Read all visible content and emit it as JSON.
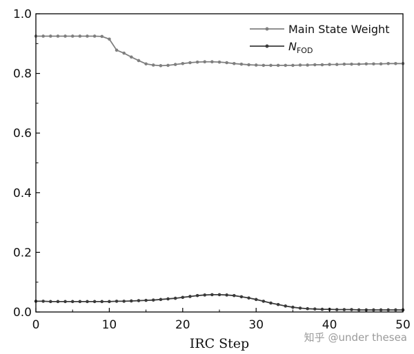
{
  "chart_data": {
    "type": "line",
    "title": "",
    "xlabel": "IRC Step",
    "ylabel": "",
    "xlim": [
      0,
      50
    ],
    "ylim": [
      0,
      1.0
    ],
    "xticks": [
      "0",
      "10",
      "20",
      "30",
      "40",
      "50"
    ],
    "yticks": [
      "0.0",
      "0.2",
      "0.4",
      "0.6",
      "0.8",
      "1.0"
    ],
    "grid": false,
    "legend_position": "top-right",
    "x": [
      0,
      1,
      2,
      3,
      4,
      5,
      6,
      7,
      8,
      9,
      10,
      11,
      12,
      13,
      14,
      15,
      16,
      17,
      18,
      19,
      20,
      21,
      22,
      23,
      24,
      25,
      26,
      27,
      28,
      29,
      30,
      31,
      32,
      33,
      34,
      35,
      36,
      37,
      38,
      39,
      40,
      41,
      42,
      43,
      44,
      45,
      46,
      47,
      48,
      49,
      50
    ],
    "series": [
      {
        "name": "Main State Weight",
        "color": "#7f7f7f",
        "values": [
          0.925,
          0.925,
          0.925,
          0.925,
          0.925,
          0.925,
          0.925,
          0.925,
          0.925,
          0.924,
          0.915,
          0.878,
          0.868,
          0.855,
          0.843,
          0.832,
          0.828,
          0.826,
          0.827,
          0.83,
          0.833,
          0.836,
          0.838,
          0.839,
          0.839,
          0.838,
          0.836,
          0.833,
          0.831,
          0.829,
          0.828,
          0.827,
          0.827,
          0.827,
          0.827,
          0.827,
          0.828,
          0.828,
          0.829,
          0.829,
          0.83,
          0.83,
          0.831,
          0.831,
          0.831,
          0.832,
          0.832,
          0.832,
          0.833,
          0.833,
          0.833
        ]
      },
      {
        "name": "N",
        "name_subscript": "FOD",
        "color": "#3a3a3a",
        "values": [
          0.036,
          0.036,
          0.035,
          0.035,
          0.035,
          0.035,
          0.035,
          0.035,
          0.035,
          0.035,
          0.035,
          0.036,
          0.036,
          0.037,
          0.038,
          0.039,
          0.04,
          0.042,
          0.044,
          0.046,
          0.049,
          0.052,
          0.055,
          0.057,
          0.058,
          0.058,
          0.057,
          0.055,
          0.051,
          0.047,
          0.042,
          0.036,
          0.03,
          0.025,
          0.02,
          0.016,
          0.013,
          0.011,
          0.01,
          0.009,
          0.009,
          0.008,
          0.008,
          0.008,
          0.007,
          0.007,
          0.007,
          0.007,
          0.007,
          0.007,
          0.007
        ]
      }
    ]
  },
  "watermark": "知乎 @under thesea"
}
